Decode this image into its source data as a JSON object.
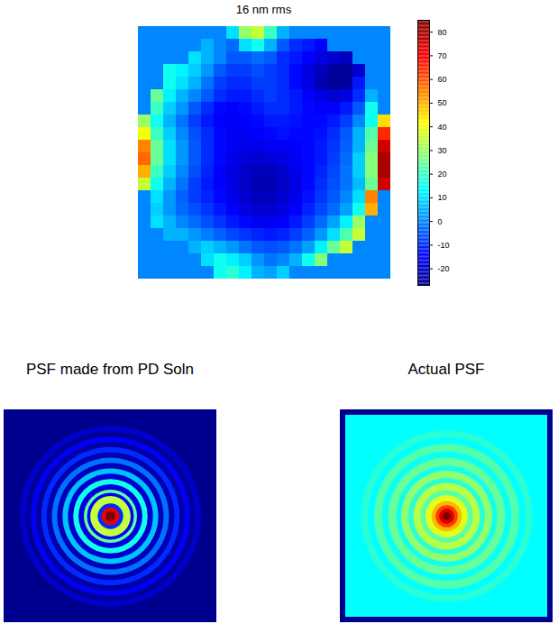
{
  "chart_data": [
    {
      "type": "heatmap",
      "title": "16 nm rms",
      "tick_labels": false,
      "color_range": [
        -27,
        85
      ],
      "color_ticks": [
        -20,
        -10,
        0,
        10,
        20,
        30,
        40,
        50,
        60,
        70,
        80
      ],
      "cells": [
        [
          0,
          0,
          0,
          0,
          0,
          0,
          0,
          10,
          30,
          35,
          20,
          5,
          0,
          0,
          0,
          0,
          0,
          0,
          0,
          0
        ],
        [
          0,
          0,
          0,
          0,
          0,
          5,
          0,
          -3,
          10,
          15,
          5,
          -5,
          -10,
          -12,
          -15,
          0,
          0,
          0,
          0,
          0
        ],
        [
          0,
          0,
          0,
          0,
          10,
          5,
          0,
          -5,
          -5,
          -3,
          -5,
          -10,
          -12,
          -15,
          -18,
          -20,
          -22,
          0,
          0,
          0
        ],
        [
          0,
          0,
          15,
          12,
          8,
          2,
          -5,
          -8,
          -8,
          -6,
          -8,
          -10,
          -14,
          -18,
          -22,
          -25,
          -26,
          -20,
          0,
          0
        ],
        [
          0,
          0,
          15,
          10,
          5,
          -2,
          -8,
          -10,
          -10,
          -8,
          -8,
          -10,
          -14,
          -18,
          -23,
          -26,
          -25,
          -12,
          0,
          0
        ],
        [
          0,
          25,
          12,
          5,
          0,
          -5,
          -10,
          -12,
          -12,
          -10,
          -8,
          -10,
          -12,
          -15,
          -18,
          -20,
          -18,
          -10,
          5,
          0
        ],
        [
          0,
          20,
          8,
          2,
          -5,
          -10,
          -14,
          -15,
          -14,
          -12,
          -10,
          -10,
          -12,
          -14,
          -15,
          -15,
          -12,
          -5,
          15,
          0
        ],
        [
          30,
          15,
          5,
          -2,
          -8,
          -12,
          -15,
          -16,
          -15,
          -14,
          -12,
          -12,
          -13,
          -14,
          -14,
          -12,
          -8,
          0,
          15,
          45
        ],
        [
          40,
          20,
          8,
          0,
          -6,
          -10,
          -14,
          -16,
          -16,
          -15,
          -14,
          -13,
          -14,
          -14,
          -13,
          -10,
          -5,
          5,
          22,
          65
        ],
        [
          55,
          25,
          10,
          2,
          -5,
          -10,
          -14,
          -16,
          -17,
          -17,
          -16,
          -16,
          -15,
          -14,
          -12,
          -9,
          -4,
          5,
          25,
          75
        ],
        [
          58,
          25,
          10,
          2,
          -5,
          -10,
          -14,
          -17,
          -19,
          -20,
          -19,
          -18,
          -16,
          -14,
          -12,
          -8,
          -3,
          8,
          28,
          80
        ],
        [
          50,
          20,
          8,
          0,
          -6,
          -11,
          -15,
          -18,
          -21,
          -22,
          -22,
          -20,
          -17,
          -14,
          -11,
          -7,
          -2,
          8,
          28,
          80
        ],
        [
          35,
          15,
          5,
          -2,
          -8,
          -12,
          -15,
          -18,
          -21,
          -23,
          -23,
          -21,
          -18,
          -14,
          -10,
          -6,
          -2,
          6,
          25,
          75
        ],
        [
          0,
          10,
          2,
          -4,
          -8,
          -11,
          -14,
          -17,
          -20,
          -22,
          -22,
          -20,
          -17,
          -13,
          -9,
          -5,
          0,
          10,
          55,
          0
        ],
        [
          0,
          8,
          2,
          -3,
          -6,
          -9,
          -12,
          -15,
          -18,
          -20,
          -20,
          -18,
          -15,
          -11,
          -7,
          -3,
          3,
          15,
          50,
          0
        ],
        [
          0,
          10,
          5,
          0,
          -3,
          -6,
          -9,
          -12,
          -14,
          -16,
          -16,
          -15,
          -12,
          -8,
          -3,
          3,
          12,
          30,
          0,
          0
        ],
        [
          0,
          0,
          5,
          5,
          2,
          -1,
          -4,
          -7,
          -9,
          -11,
          -12,
          -11,
          -8,
          -4,
          2,
          10,
          22,
          35,
          0,
          0
        ],
        [
          0,
          0,
          0,
          0,
          5,
          8,
          5,
          2,
          -2,
          -5,
          -6,
          -5,
          -2,
          3,
          12,
          25,
          35,
          0,
          0,
          0
        ],
        [
          0,
          0,
          0,
          0,
          0,
          10,
          15,
          12,
          8,
          2,
          -2,
          0,
          5,
          15,
          28,
          0,
          0,
          0,
          0,
          0
        ],
        [
          0,
          0,
          0,
          0,
          0,
          0,
          15,
          18,
          12,
          5,
          3,
          8,
          0,
          0,
          0,
          0,
          0,
          0,
          0,
          0
        ]
      ]
    },
    {
      "type": "rings",
      "title": "PSF made from PD Soln",
      "tick_labels": false,
      "xlim": [
        -1,
        1
      ],
      "value_range": [
        0,
        100
      ],
      "radii": [
        1.45,
        0.85,
        0.8,
        0.75,
        0.7,
        0.65,
        0.6,
        0.55,
        0.5,
        0.45,
        0.4,
        0.35,
        0.3,
        0.25,
        0.22,
        0.19,
        0.12,
        0.085,
        0.05
      ],
      "values": [
        0,
        6,
        1,
        10,
        2,
        15,
        3,
        22,
        4,
        30,
        6,
        38,
        8,
        45,
        10,
        55,
        15,
        88,
        100
      ]
    },
    {
      "type": "rings",
      "title": "Actual PSF",
      "tick_labels": false,
      "xlim": [
        -1,
        1
      ],
      "value_range": [
        0,
        100
      ],
      "radii": [
        1.45,
        0.85,
        0.78,
        0.72,
        0.64,
        0.58,
        0.5,
        0.45,
        0.38,
        0.33,
        0.26,
        0.21,
        0.15,
        0.11,
        0.075,
        0.04
      ],
      "values": [
        36,
        40,
        36,
        44,
        37,
        46,
        38,
        50,
        40,
        54,
        45,
        58,
        68,
        80,
        90,
        100
      ]
    }
  ]
}
